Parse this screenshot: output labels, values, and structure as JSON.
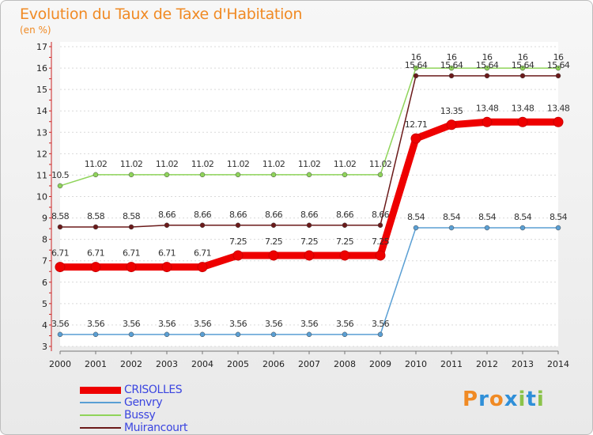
{
  "chart_data": {
    "type": "line",
    "title": "Evolution du Taux de Taxe d'Habitation",
    "ylabel": "(en %)",
    "xlabel": "",
    "x": [
      "2000",
      "2001",
      "2002",
      "2003",
      "2004",
      "2005",
      "2006",
      "2007",
      "2008",
      "2009",
      "2010",
      "2011",
      "2012",
      "2013",
      "2014"
    ],
    "ylim": [
      3,
      17
    ],
    "yticks": [
      "3",
      "4",
      "5",
      "6",
      "7",
      "8",
      "9",
      "10",
      "11",
      "12",
      "13",
      "14",
      "15",
      "16",
      "17"
    ],
    "series": [
      {
        "name": "Bussy",
        "color": "#8fd45a",
        "values": [
          10.5,
          11.02,
          11.02,
          11.02,
          11.02,
          11.02,
          11.02,
          11.02,
          11.02,
          11.02,
          16,
          16,
          16,
          16,
          16
        ],
        "labels": [
          "10.5",
          "11.02",
          "11.02",
          "11.02",
          "11.02",
          "11.02",
          "11.02",
          "11.02",
          "11.02",
          "11.02",
          "16",
          "16",
          "16",
          "16",
          "16"
        ]
      },
      {
        "name": "Muirancourt",
        "color": "#6b1a1a",
        "values": [
          8.58,
          8.58,
          8.58,
          8.66,
          8.66,
          8.66,
          8.66,
          8.66,
          8.66,
          8.66,
          15.64,
          15.64,
          15.64,
          15.64,
          15.64
        ],
        "labels": [
          "8.58",
          "8.58",
          "8.58",
          "8.66",
          "8.66",
          "8.66",
          "8.66",
          "8.66",
          "8.66",
          "8.66",
          "15.64",
          "15.64",
          "15.64",
          "15.64",
          "15.64"
        ]
      },
      {
        "name": "Genvry",
        "color": "#5a9fd4",
        "values": [
          3.56,
          3.56,
          3.56,
          3.56,
          3.56,
          3.56,
          3.56,
          3.56,
          3.56,
          3.56,
          8.54,
          8.54,
          8.54,
          8.54,
          8.54
        ],
        "labels": [
          "3.56",
          "3.56",
          "3.56",
          "3.56",
          "3.56",
          "3.56",
          "3.56",
          "3.56",
          "3.56",
          "3.56",
          "8.54",
          "8.54",
          "8.54",
          "8.54",
          "8.54"
        ]
      },
      {
        "name": "CRISOLLES",
        "color": "#ee0000",
        "values": [
          6.71,
          6.71,
          6.71,
          6.71,
          6.71,
          7.25,
          7.25,
          7.25,
          7.25,
          7.25,
          12.71,
          13.35,
          13.48,
          13.48,
          13.48
        ],
        "labels": [
          "6.71",
          "6.71",
          "6.71",
          "6.71",
          "6.71",
          "7.25",
          "7.25",
          "7.25",
          "7.25",
          "7.25",
          "12.71",
          "13.35",
          "13.48",
          "13.48",
          "13.48"
        ]
      }
    ],
    "legend": [
      "CRISOLLES",
      "Genvry",
      "Bussy",
      "Muirancourt"
    ],
    "legend_position": "bottom-left"
  },
  "logo": {
    "text": "Proxiti",
    "letters": [
      "P",
      "r",
      "o",
      "x",
      "i",
      "t",
      "i"
    ],
    "colors": [
      "#f08a24",
      "#2f8fd8",
      "#f08a24",
      "#2f8fd8",
      "#8bc34a",
      "#2f8fd8",
      "#8bc34a"
    ]
  }
}
